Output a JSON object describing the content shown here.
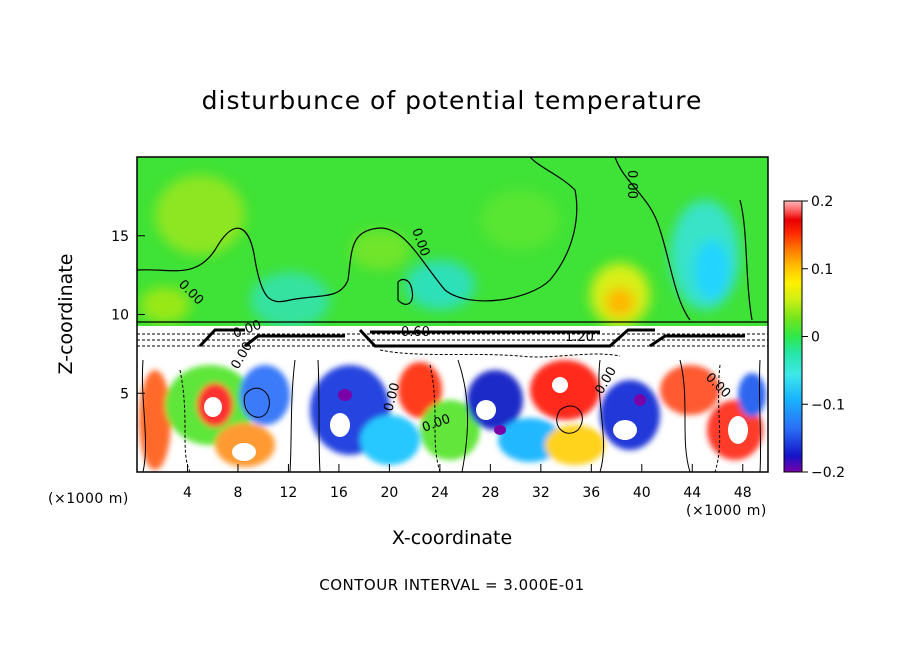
{
  "chart_data": {
    "type": "heatmap",
    "title": "disturbunce of potential temperature",
    "xlabel": "X-coordinate",
    "ylabel": "Z-coordinate",
    "x_unit_left": "(×1000 m)",
    "x_unit_right": "(×1000 m)",
    "xlim": [
      0,
      50
    ],
    "ylim": [
      0,
      20
    ],
    "x_ticks": [
      4,
      8,
      12,
      16,
      20,
      24,
      28,
      32,
      36,
      40,
      44,
      48
    ],
    "y_ticks": [
      5,
      10,
      15
    ],
    "colorbar": {
      "range": [
        -0.2,
        0.2
      ],
      "tick_labels": [
        "0.2",
        "0.1",
        "0",
        "−0.1",
        "−0.2"
      ],
      "tick_values": [
        0.2,
        0.1,
        0,
        -0.1,
        -0.2
      ],
      "colors": [
        "#7a00a8",
        "#1414c8",
        "#2a6ef5",
        "#19b4ff",
        "#3ee8e8",
        "#26e6a6",
        "#2ee84a",
        "#78e61a",
        "#d2f014",
        "#fff000",
        "#ffbe00",
        "#ff7a00",
        "#ff2a00",
        "#e80000",
        "#ff6e6e",
        "#ffb8b8"
      ]
    },
    "contour_labels": [
      "0.00",
      "0.00",
      "0.00",
      "0.00",
      "0.60",
      "1.20",
      "0.00",
      "0.00",
      "0.00",
      "0.00",
      "0.00"
    ],
    "contour_interval": "CONTOUR INTERVAL = 3.000E-01"
  }
}
